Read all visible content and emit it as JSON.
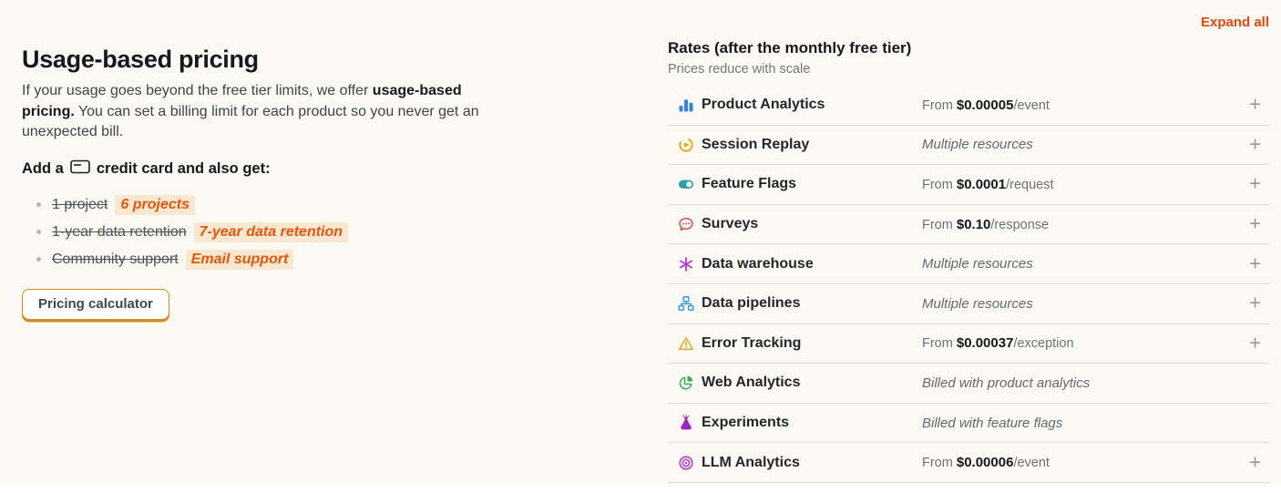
{
  "theme": {
    "background": "#FAF9F3",
    "accent_orange": "#E5480F",
    "highlight_text": "#E4560D",
    "highlight_bg": "#FAE7CF",
    "button_border": "#D78A1E",
    "divider": "#DCDDD6",
    "text_dark": "#16181D",
    "text_gray": "#6E7176"
  },
  "left": {
    "title": "Usage-based pricing",
    "intro_normal": "If your usage goes beyond the free tier limits, we offer ",
    "intro_bold": "usage-based pricing.",
    "intro_rest": " You can set a billing limit for each product so you never get an unexpected bill.",
    "add_card_prefix": "Add a",
    "add_card_suffix": "credit card and also get:",
    "benefits": [
      {
        "old": "1 project",
        "new": "6 projects"
      },
      {
        "old": "1-year data retention",
        "new": "7-year data retention"
      },
      {
        "old": "Community support",
        "new": "Email support"
      }
    ],
    "button_label": "Pricing calculator"
  },
  "rates": {
    "expand_all_label": "Expand all",
    "title": "Rates (after the monthly free tier)",
    "subtitle": "Prices reduce with scale",
    "plus_glyph": "+",
    "rows": [
      {
        "icon": "bar-chart-icon",
        "icon_color": "#2F80F0",
        "label": "Product Analytics",
        "price_prefix": "From ",
        "price": "$0.00005",
        "price_suffix": "/event",
        "expandable": true
      },
      {
        "icon": "session-replay-icon",
        "icon_color": "#F0A009",
        "label": "Session Replay",
        "note": "Multiple resources",
        "expandable": true
      },
      {
        "icon": "toggle-icon",
        "icon_color": "#2BA0A6",
        "label": "Feature Flags",
        "price_prefix": "From ",
        "price": "$0.0001",
        "price_suffix": "/request",
        "expandable": true
      },
      {
        "icon": "chat-bubble-icon",
        "icon_color": "#E0484E",
        "label": "Surveys",
        "price_prefix": "From ",
        "price": "$0.10",
        "price_suffix": "/response",
        "expandable": true
      },
      {
        "icon": "asterisk-icon",
        "icon_color": "#B538DD",
        "label": "Data warehouse",
        "note": "Multiple resources",
        "expandable": true
      },
      {
        "icon": "hierarchy-icon",
        "icon_color": "#35A0DC",
        "label": "Data pipelines",
        "note": "Multiple resources",
        "expandable": true
      },
      {
        "icon": "warning-triangle-icon",
        "icon_color": "#EFA52B",
        "label": "Error Tracking",
        "price_prefix": "From ",
        "price": "$0.00037",
        "price_suffix": "/exception",
        "expandable": true
      },
      {
        "icon": "pie-chart-icon",
        "icon_color": "#36B05C",
        "label": "Web Analytics",
        "note": "Billed with product analytics",
        "expandable": false
      },
      {
        "icon": "flask-icon",
        "icon_color": "#A024C2",
        "label": "Experiments",
        "note": "Billed with feature flags",
        "expandable": false
      },
      {
        "icon": "target-icon",
        "icon_color": "#B334CC",
        "label": "LLM Analytics",
        "price_prefix": "From ",
        "price": "$0.00006",
        "price_suffix": "/event",
        "expandable": true
      }
    ]
  }
}
